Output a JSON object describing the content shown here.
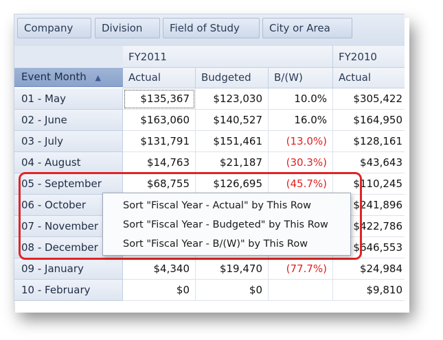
{
  "filter_fields": [
    "Company",
    "Division",
    "Field of Study",
    "City or Area"
  ],
  "row_field": {
    "label": "Event Month",
    "sort_icon": "▲"
  },
  "fiscal_years": [
    "FY2011",
    "FY2010"
  ],
  "measures": [
    "Actual",
    "Budgeted",
    "B/(W)",
    "Actual"
  ],
  "rows": [
    {
      "label": "01 - May",
      "cells": [
        "$135,367",
        "$123,030",
        "10.0%",
        "$305,422"
      ]
    },
    {
      "label": "02 - June",
      "cells": [
        "$163,060",
        "$140,527",
        "16.0%",
        "$164,950"
      ]
    },
    {
      "label": "03 - July",
      "cells": [
        "$131,791",
        "$151,461",
        "(13.0%)",
        "$128,161"
      ]
    },
    {
      "label": "04 - August",
      "cells": [
        "$14,763",
        "$21,187",
        "(30.3%)",
        "$43,643"
      ]
    },
    {
      "label": "05 - September",
      "cells": [
        "$68,755",
        "$126,695",
        "(45.7%)",
        "$110,245"
      ]
    },
    {
      "label": "06 - October",
      "cells": [
        "",
        "",
        "",
        "$241,896"
      ]
    },
    {
      "label": "07 - November",
      "cells": [
        "",
        "",
        "",
        "$422,786"
      ]
    },
    {
      "label": "08 - December",
      "cells": [
        "",
        "",
        "",
        "$646,553"
      ]
    },
    {
      "label": "09 - January",
      "cells": [
        "$4,340",
        "$19,470",
        "(77.7%)",
        "$24,984"
      ]
    },
    {
      "label": "10 - February",
      "cells": [
        "$0",
        "$0",
        "",
        "$9,810"
      ]
    }
  ],
  "context_menu": [
    "Sort \"Fiscal Year - Actual\" by This Row",
    "Sort \"Fiscal Year - Budgeted\" by This Row",
    "Sort \"Fiscal Year - B/(W)\" by This Row"
  ],
  "colors": {
    "negative": "#e02020",
    "highlight": "#e02424",
    "header": "#8aa3cc"
  }
}
